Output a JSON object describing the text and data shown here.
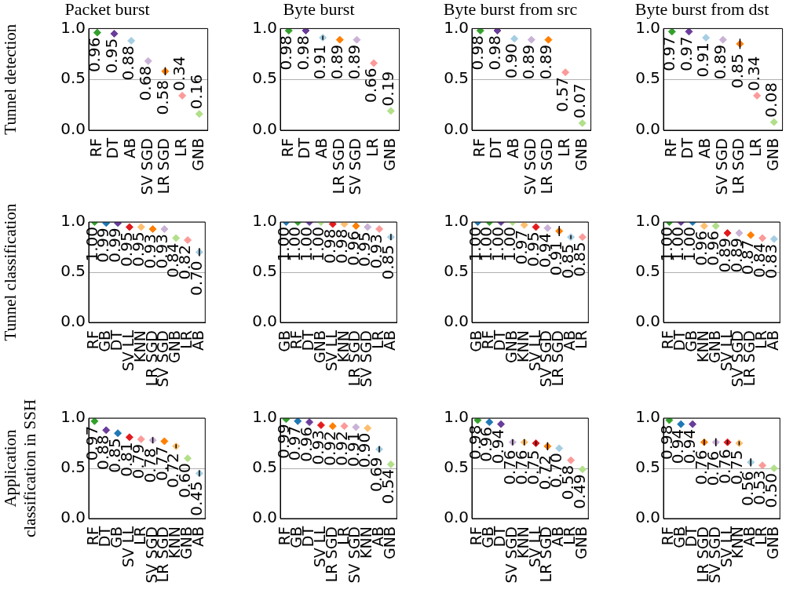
{
  "chart_data": [
    {
      "type": "scatter",
      "title": "Packet burst",
      "ylabel": "Tunnel detection",
      "categories": [
        "RF",
        "DT",
        "AB",
        "SV SGD",
        "LR SGD",
        "LR",
        "GNB"
      ],
      "values": [
        0.96,
        0.95,
        0.88,
        0.68,
        0.58,
        0.34,
        0.16
      ],
      "value_labels": [
        "0.96",
        "0.95",
        "0.88",
        "0.68",
        "0.58",
        "0.34",
        "0.16"
      ],
      "errors": [
        null,
        null,
        null,
        null,
        0.04,
        null,
        null
      ],
      "colors": [
        "#33a02c",
        "#6a3d9a",
        "#a6cee3",
        "#cab2d6",
        "#ff7f00",
        "#fb9a99",
        "#b2df8a"
      ],
      "ylim": [
        0,
        1
      ],
      "yticks": [
        {
          "value": 0,
          "label": "0.0"
        },
        {
          "value": 0.5,
          "label": "0.5"
        },
        {
          "value": 1,
          "label": "1.0"
        }
      ],
      "grid": "y",
      "marker": "diamond"
    },
    {
      "type": "scatter",
      "title": "Byte burst",
      "categories": [
        "RF",
        "DT",
        "AB",
        "LR SGD",
        "SV SGD",
        "LR",
        "GNB"
      ],
      "values": [
        0.98,
        0.98,
        0.91,
        0.89,
        0.89,
        0.66,
        0.19
      ],
      "value_labels": [
        "0.98",
        "0.98",
        "0.91",
        "0.89",
        "0.89",
        "0.66",
        "0.19"
      ],
      "errors": [
        null,
        null,
        0.02,
        null,
        null,
        null,
        null
      ],
      "colors": [
        "#33a02c",
        "#6a3d9a",
        "#a6cee3",
        "#ff7f00",
        "#cab2d6",
        "#fb9a99",
        "#b2df8a"
      ],
      "ylim": [
        0,
        1
      ],
      "yticks": [
        {
          "value": 0,
          "label": "0.0"
        },
        {
          "value": 0.5,
          "label": "0.5"
        },
        {
          "value": 1,
          "label": "1.0"
        }
      ],
      "grid": "y",
      "marker": "diamond"
    },
    {
      "type": "scatter",
      "title": "Byte burst from src",
      "categories": [
        "RF",
        "DT",
        "AB",
        "SV SGD",
        "LR SGD",
        "LR",
        "GNB"
      ],
      "values": [
        0.98,
        0.98,
        0.9,
        0.89,
        0.89,
        0.57,
        0.07
      ],
      "value_labels": [
        "0.98",
        "0.98",
        "0.90",
        "0.89",
        "0.89",
        "0.57",
        "0.07"
      ],
      "colors": [
        "#33a02c",
        "#6a3d9a",
        "#a6cee3",
        "#cab2d6",
        "#ff7f00",
        "#fb9a99",
        "#b2df8a"
      ],
      "ylim": [
        0,
        1
      ],
      "yticks": [
        {
          "value": 0,
          "label": "0.0"
        },
        {
          "value": 0.5,
          "label": "0.5"
        },
        {
          "value": 1,
          "label": "1.0"
        }
      ],
      "grid": "y",
      "marker": "diamond"
    },
    {
      "type": "scatter",
      "title": "Byte burst from dst",
      "categories": [
        "RF",
        "DT",
        "AB",
        "SV SGD",
        "LR SGD",
        "LR",
        "GNB"
      ],
      "values": [
        0.97,
        0.97,
        0.91,
        0.89,
        0.85,
        0.34,
        0.08
      ],
      "value_labels": [
        "0.97",
        "0.97",
        "0.91",
        "0.89",
        "0.85",
        "0.34",
        "0.08"
      ],
      "errors": [
        null,
        null,
        null,
        null,
        0.05,
        null,
        null
      ],
      "colors": [
        "#33a02c",
        "#6a3d9a",
        "#a6cee3",
        "#cab2d6",
        "#ff7f00",
        "#fb9a99",
        "#b2df8a"
      ],
      "ylim": [
        0,
        1
      ],
      "yticks": [
        {
          "value": 0,
          "label": "0.0"
        },
        {
          "value": 0.5,
          "label": "0.5"
        },
        {
          "value": 1,
          "label": "1.0"
        }
      ],
      "grid": "y",
      "marker": "diamond"
    },
    {
      "type": "scatter",
      "ylabel": "Tunnel classification",
      "categories": [
        "RF",
        "GB",
        "DT",
        "SV LL",
        "KNN",
        "LR SGD",
        "SV SGD",
        "GNB",
        "LR",
        "AB"
      ],
      "values": [
        1.0,
        0.99,
        0.99,
        0.95,
        0.95,
        0.93,
        0.93,
        0.84,
        0.82,
        0.7
      ],
      "value_labels": [
        "1.00",
        "0.99",
        "0.99",
        "0.95",
        "0.95",
        "0.93",
        "0.93",
        "0.84",
        "0.82",
        "0.70"
      ],
      "errors": [
        null,
        null,
        null,
        null,
        null,
        null,
        null,
        null,
        null,
        0.04
      ],
      "colors": [
        "#33a02c",
        "#1f78b4",
        "#6a3d9a",
        "#e31a1c",
        "#fdbf6f",
        "#ff7f00",
        "#cab2d6",
        "#b2df8a",
        "#fb9a99",
        "#a6cee3"
      ],
      "ylim": [
        0,
        1
      ],
      "yticks": [
        {
          "value": 0,
          "label": "0.0"
        },
        {
          "value": 0.5,
          "label": "0.5"
        },
        {
          "value": 1,
          "label": "1.0"
        }
      ],
      "grid": "y",
      "marker": "diamond"
    },
    {
      "type": "scatter",
      "categories": [
        "GB",
        "RF",
        "DT",
        "GNB",
        "SV LL",
        "KNN",
        "LR SGD",
        "SV SGD",
        "LR",
        "AB"
      ],
      "values": [
        1.0,
        1.0,
        1.0,
        1.0,
        0.98,
        0.98,
        0.96,
        0.95,
        0.93,
        0.85
      ],
      "value_labels": [
        "1.00",
        "1.00",
        "1.00",
        "1.00",
        "0.98",
        "0.98",
        "0.96",
        "0.95",
        "0.93",
        "0.85"
      ],
      "errors": [
        null,
        null,
        null,
        null,
        null,
        null,
        null,
        null,
        null,
        0.03
      ],
      "colors": [
        "#1f78b4",
        "#33a02c",
        "#6a3d9a",
        "#b2df8a",
        "#e31a1c",
        "#fdbf6f",
        "#ff7f00",
        "#cab2d6",
        "#fb9a99",
        "#a6cee3"
      ],
      "ylim": [
        0,
        1
      ],
      "yticks": [
        {
          "value": 0,
          "label": "0.0"
        },
        {
          "value": 0.5,
          "label": "0.5"
        },
        {
          "value": 1,
          "label": "1.0"
        }
      ],
      "grid": "y",
      "marker": "diamond"
    },
    {
      "type": "scatter",
      "categories": [
        "GB",
        "RF",
        "DT",
        "GNB",
        "KNN",
        "SV LL",
        "SV SGD",
        "LR SGD",
        "AB",
        "LR"
      ],
      "values": [
        1.0,
        1.0,
        1.0,
        1.0,
        0.97,
        0.95,
        0.94,
        0.91,
        0.85,
        0.85
      ],
      "value_labels": [
        "1.00",
        "1.00",
        "1.00",
        "1.00",
        "0.97",
        "0.95",
        "0.94",
        "0.91",
        "0.85",
        "0.85"
      ],
      "errors": [
        null,
        null,
        null,
        null,
        null,
        null,
        null,
        0.05,
        0.02,
        null
      ],
      "colors": [
        "#1f78b4",
        "#33a02c",
        "#6a3d9a",
        "#b2df8a",
        "#fdbf6f",
        "#e31a1c",
        "#cab2d6",
        "#ff7f00",
        "#a6cee3",
        "#fb9a99"
      ],
      "ylim": [
        0,
        1
      ],
      "yticks": [
        {
          "value": 0,
          "label": "0.0"
        },
        {
          "value": 0.5,
          "label": "0.5"
        },
        {
          "value": 1,
          "label": "1.0"
        }
      ],
      "grid": "y",
      "marker": "diamond"
    },
    {
      "type": "scatter",
      "categories": [
        "RF",
        "DT",
        "GB",
        "KNN",
        "GNB",
        "SV LL",
        "SV SGD",
        "LR SGD",
        "LR",
        "AB"
      ],
      "values": [
        1.0,
        1.0,
        1.0,
        0.96,
        0.96,
        0.89,
        0.89,
        0.87,
        0.84,
        0.83
      ],
      "value_labels": [
        "1.00",
        "1.00",
        "1.00",
        "0.96",
        "0.96",
        "0.89",
        "0.89",
        "0.87",
        "0.84",
        "0.83"
      ],
      "colors": [
        "#33a02c",
        "#6a3d9a",
        "#1f78b4",
        "#fdbf6f",
        "#b2df8a",
        "#e31a1c",
        "#cab2d6",
        "#ff7f00",
        "#fb9a99",
        "#a6cee3"
      ],
      "ylim": [
        0,
        1
      ],
      "yticks": [
        {
          "value": 0,
          "label": "0.0"
        },
        {
          "value": 0.5,
          "label": "0.5"
        },
        {
          "value": 1,
          "label": "1.0"
        }
      ],
      "grid": "y",
      "marker": "diamond"
    },
    {
      "type": "scatter",
      "ylabel": "Application classification in SSH",
      "categories": [
        "RF",
        "DT",
        "GB",
        "SV LL",
        "LR",
        "SV SGD",
        "LR SGD",
        "KNN",
        "GNB",
        "AB"
      ],
      "values": [
        0.97,
        0.88,
        0.85,
        0.81,
        0.79,
        0.78,
        0.77,
        0.72,
        0.6,
        0.45
      ],
      "value_labels": [
        "0.97",
        "0.88",
        "0.85",
        "0.81",
        "0.79",
        "0.78",
        "0.77",
        "0.72",
        "0.60",
        "0.45"
      ],
      "errors": [
        null,
        null,
        null,
        null,
        null,
        0.03,
        null,
        0.02,
        null,
        0.03
      ],
      "colors": [
        "#33a02c",
        "#6a3d9a",
        "#1f78b4",
        "#e31a1c",
        "#fb9a99",
        "#cab2d6",
        "#ff7f00",
        "#fdbf6f",
        "#b2df8a",
        "#a6cee3"
      ],
      "ylim": [
        0,
        1
      ],
      "yticks": [
        {
          "value": 0,
          "label": "0.0"
        },
        {
          "value": 0.5,
          "label": "0.5"
        },
        {
          "value": 1,
          "label": "1.0"
        }
      ],
      "grid": "y",
      "marker": "diamond"
    },
    {
      "type": "scatter",
      "categories": [
        "RF",
        "GB",
        "DT",
        "SV LL",
        "LR SGD",
        "LR",
        "SV SGD",
        "KNN",
        "AB",
        "GNB"
      ],
      "values": [
        0.99,
        0.97,
        0.96,
        0.93,
        0.92,
        0.92,
        0.91,
        0.9,
        0.69,
        0.54
      ],
      "value_labels": [
        "0.99",
        "0.97",
        "0.96",
        "0.93",
        "0.92",
        "0.92",
        "0.91",
        "0.90",
        "0.69",
        "0.54"
      ],
      "errors": [
        null,
        null,
        null,
        null,
        null,
        null,
        null,
        null,
        0.03,
        null
      ],
      "colors": [
        "#33a02c",
        "#1f78b4",
        "#6a3d9a",
        "#e31a1c",
        "#ff7f00",
        "#fb9a99",
        "#cab2d6",
        "#fdbf6f",
        "#a6cee3",
        "#b2df8a"
      ],
      "ylim": [
        0,
        1
      ],
      "yticks": [
        {
          "value": 0,
          "label": "0.0"
        },
        {
          "value": 0.5,
          "label": "0.5"
        },
        {
          "value": 1,
          "label": "1.0"
        }
      ],
      "grid": "y",
      "marker": "diamond"
    },
    {
      "type": "scatter",
      "categories": [
        "RF",
        "GB",
        "DT",
        "SV SGD",
        "KNN",
        "SV LL",
        "LR SGD",
        "AB",
        "LR",
        "GNB"
      ],
      "values": [
        0.98,
        0.96,
        0.94,
        0.76,
        0.76,
        0.75,
        0.72,
        0.7,
        0.58,
        0.49
      ],
      "value_labels": [
        "0.98",
        "0.96",
        "0.94",
        "0.76",
        "0.76",
        "0.75",
        "0.72",
        "0.70",
        "0.58",
        "0.49"
      ],
      "errors": [
        null,
        null,
        null,
        0.03,
        0.03,
        0.02,
        0.04,
        null,
        null,
        null
      ],
      "colors": [
        "#33a02c",
        "#1f78b4",
        "#6a3d9a",
        "#cab2d6",
        "#fdbf6f",
        "#e31a1c",
        "#ff7f00",
        "#a6cee3",
        "#fb9a99",
        "#b2df8a"
      ],
      "ylim": [
        0,
        1
      ],
      "yticks": [
        {
          "value": 0,
          "label": "0.0"
        },
        {
          "value": 0.5,
          "label": "0.5"
        },
        {
          "value": 1,
          "label": "1.0"
        }
      ],
      "grid": "y",
      "marker": "diamond"
    },
    {
      "type": "scatter",
      "categories": [
        "RF",
        "GB",
        "DT",
        "LR SGD",
        "SV SGD",
        "SV LL",
        "KNN",
        "AB",
        "LR",
        "GNB"
      ],
      "values": [
        0.98,
        0.94,
        0.94,
        0.76,
        0.76,
        0.76,
        0.75,
        0.56,
        0.53,
        0.5
      ],
      "value_labels": [
        "0.98",
        "0.94",
        "0.94",
        "0.76",
        "0.76",
        "0.76",
        "0.75",
        "0.56",
        "0.53",
        "0.50"
      ],
      "errors": [
        null,
        null,
        null,
        0.03,
        0.04,
        0.02,
        0.02,
        0.04,
        null,
        null
      ],
      "colors": [
        "#33a02c",
        "#1f78b4",
        "#6a3d9a",
        "#ff7f00",
        "#cab2d6",
        "#e31a1c",
        "#fdbf6f",
        "#a6cee3",
        "#fb9a99",
        "#b2df8a"
      ],
      "ylim": [
        0,
        1
      ],
      "yticks": [
        {
          "value": 0,
          "label": "0.0"
        },
        {
          "value": 0.5,
          "label": "0.5"
        },
        {
          "value": 1,
          "label": "1.0"
        }
      ],
      "grid": "y",
      "marker": "diamond"
    }
  ]
}
